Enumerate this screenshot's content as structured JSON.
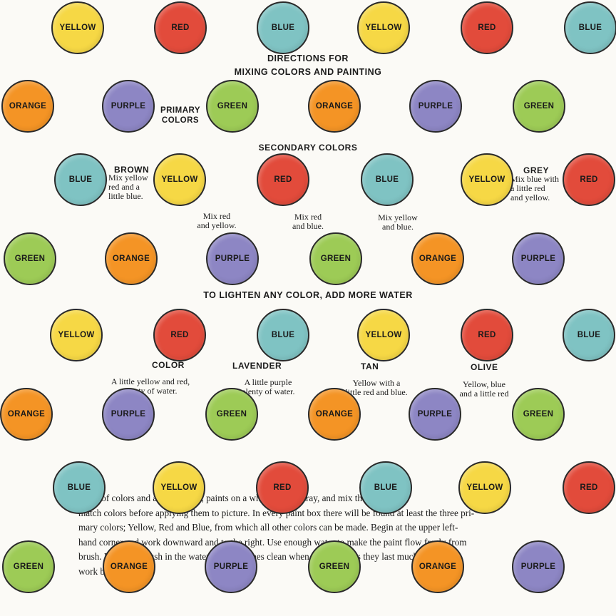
{
  "colors": {
    "yellow": "#f6d845",
    "red": "#e24b3b",
    "blue": "#7fc3c3",
    "orange": "#f49425",
    "purple": "#8d86c4",
    "green": "#9dcb56"
  },
  "labels": {
    "yellow": "YELLOW",
    "red": "RED",
    "blue": "BLUE",
    "orange": "ORANGE",
    "purple": "PURPLE",
    "green": "GREEN"
  },
  "heading": {
    "line1": "DIRECTIONS FOR",
    "line2": "MIXING COLORS AND PAINTING"
  },
  "primary": {
    "line1": "PRIMARY",
    "line2": "COLORS"
  },
  "secondary_title": "SECONDARY COLORS",
  "brown": {
    "title": "BROWN",
    "lines": [
      "Mix yellow",
      "red and a",
      "little blue."
    ]
  },
  "grey": {
    "title": "GREY",
    "lines": [
      "Mix blue with",
      "a little red",
      "and yellow."
    ]
  },
  "mixes": [
    [
      "Mix red",
      "and yellow."
    ],
    [
      "Mix red",
      "and blue."
    ],
    [
      "Mix yellow",
      "and blue."
    ]
  ],
  "lighten": "TO LIGHTEN ANY COLOR, ADD MORE WATER",
  "tints": {
    "color": {
      "title": "COLOR",
      "lines": [
        "A little yellow and red,",
        "plenty of water."
      ]
    },
    "lavender": {
      "title": "LAVENDER",
      "lines": [
        "A little purple",
        "plenty of water."
      ]
    },
    "tan": {
      "title": "TAN",
      "lines": [
        "Yellow with a",
        "little red and blue."
      ]
    },
    "olive": {
      "title": "OLIVE",
      "lines": [
        "Yellow, blue",
        "and a little red"
      ]
    }
  },
  "paragraph": [
    "a box of colors and a good brush, paints on a white plate or tray, and mix them to",
    "match colors before applying them to picture. In every paint box there will be found at least the three pri-",
    "mary colors; Yellow, Red and Blue, from which all other colors can be made. Begin at the upper left-",
    "hand corner and work downward and to the right. Use enough water to make the paint flow freely from",
    "brush. Rinse the brush in the water. Keep brushes clean when not in use, as they last much longer and",
    "work better."
  ]
}
